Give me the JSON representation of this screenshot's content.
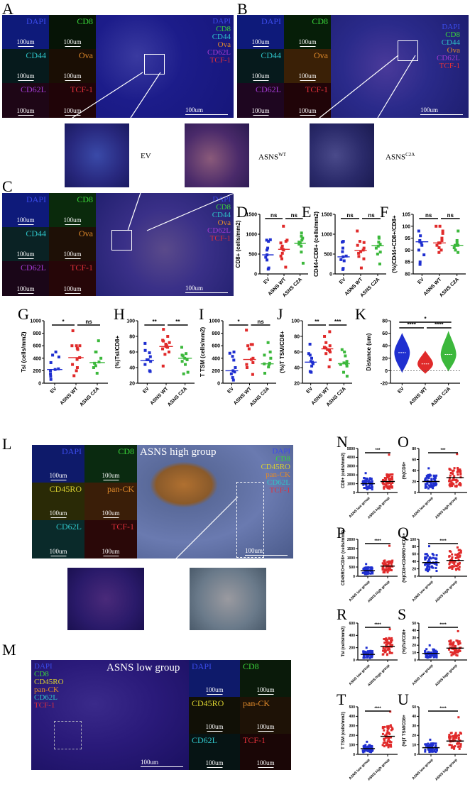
{
  "figure": {
    "panel_letters": [
      "A",
      "B",
      "C",
      "D",
      "E",
      "F",
      "G",
      "H",
      "I",
      "J",
      "K",
      "L",
      "M",
      "N",
      "O",
      "P",
      "Q",
      "R",
      "S",
      "T",
      "U"
    ]
  },
  "mouse_imaging": {
    "channels": [
      {
        "name": "DAPI",
        "color": "#2c3cd8"
      },
      {
        "name": "CD8",
        "color": "#3ad63a"
      },
      {
        "name": "CD44",
        "color": "#2fc4c8"
      },
      {
        "name": "Ova",
        "color": "#e08a2a"
      },
      {
        "name": "CD62L",
        "color": "#a13ad0"
      },
      {
        "name": "TCF-1",
        "color": "#e0303a"
      }
    ],
    "scale_bar": "100um",
    "panels": [
      {
        "id": "A",
        "group": "EV"
      },
      {
        "id": "B",
        "group": "ASNS WT"
      },
      {
        "id": "C",
        "group": "ASNS C2A"
      }
    ],
    "insets": [
      {
        "label": "EV",
        "sup": ""
      },
      {
        "label": "ASNS",
        "sup": "WT"
      },
      {
        "label": "ASNS",
        "sup": "C2A"
      }
    ]
  },
  "human_imaging": {
    "channels": [
      {
        "name": "DAPI",
        "color": "#2c3cd8"
      },
      {
        "name": "CD8",
        "color": "#3ad63a"
      },
      {
        "name": "CD45RO",
        "color": "#d8d030"
      },
      {
        "name": "pan-CK",
        "color": "#e08a2a"
      },
      {
        "name": "CD62L",
        "color": "#2fc4c8"
      },
      {
        "name": "TCF-1",
        "color": "#e0303a"
      }
    ],
    "scale_bar": "100um",
    "L_title": "ASNS high group",
    "M_title": "ASNS low group"
  },
  "chart_data": [
    {
      "panel": "D",
      "type": "scatter",
      "ylabel": "CD8+ (cells/mm2)",
      "categories": [
        "EV",
        "ASNS WT",
        "ASNS C2A"
      ],
      "ylim": [
        0,
        1500
      ],
      "yticks": [
        0,
        500,
        1000,
        1500
      ],
      "series": [
        {
          "name": "EV",
          "color": "#1f2fd0",
          "values": [
            120,
            150,
            350,
            420,
            480,
            600,
            650,
            820,
            850,
            860
          ],
          "median": 480
        },
        {
          "name": "ASNS WT",
          "color": "#e02a2a",
          "values": [
            170,
            380,
            450,
            520,
            600,
            620,
            650,
            700,
            780,
            820,
            850,
            1200
          ],
          "median": 620
        },
        {
          "name": "ASNS C2A",
          "color": "#3cb83c",
          "values": [
            270,
            550,
            700,
            750,
            780,
            800,
            850,
            900,
            950,
            1030
          ],
          "median": 770
        }
      ],
      "significance": [
        {
          "pair": "EV-WT",
          "label": "ns"
        },
        {
          "pair": "WT-C2A",
          "label": "ns"
        }
      ]
    },
    {
      "panel": "E",
      "type": "scatter",
      "ylabel": "CD44+CD8+ (cells/mm2)",
      "categories": [
        "EV",
        "ASNS WT",
        "ASNS C2A"
      ],
      "ylim": [
        0,
        1500
      ],
      "yticks": [
        0,
        500,
        1000,
        1500
      ],
      "series": [
        {
          "name": "EV",
          "color": "#1f2fd0",
          "values": [
            110,
            140,
            330,
            360,
            430,
            450,
            560,
            650,
            800,
            820
          ],
          "median": 430
        },
        {
          "name": "ASNS WT",
          "color": "#e02a2a",
          "values": [
            150,
            380,
            440,
            520,
            560,
            600,
            650,
            720,
            790,
            820,
            1080
          ],
          "median": 590
        },
        {
          "name": "ASNS C2A",
          "color": "#3cb83c",
          "values": [
            250,
            500,
            550,
            650,
            700,
            750,
            800,
            900,
            930
          ],
          "median": 710
        }
      ],
      "significance": [
        {
          "pair": "EV-WT",
          "label": "ns"
        },
        {
          "pair": "WT-C2A",
          "label": "ns"
        }
      ]
    },
    {
      "panel": "F",
      "type": "scatter",
      "ylabel": "(%)CD44+CD8+/CD8+",
      "categories": [
        "EV",
        "ASNS WT",
        "ASNS C2A"
      ],
      "ylim": [
        80,
        105
      ],
      "yticks": [
        80,
        85,
        90,
        95,
        100,
        105
      ],
      "series": [
        {
          "name": "EV",
          "color": "#1f2fd0",
          "values": [
            84,
            85,
            88,
            90,
            92,
            93,
            93.5,
            94,
            96,
            98
          ],
          "median": 93.5
        },
        {
          "name": "ASNS WT",
          "color": "#e02a2a",
          "values": [
            89,
            90,
            91,
            92,
            93,
            93,
            94,
            95,
            97,
            98,
            100,
            100
          ],
          "median": 93
        },
        {
          "name": "ASNS C2A",
          "color": "#3cb83c",
          "values": [
            89,
            90,
            91,
            92,
            92,
            92,
            93,
            94,
            98
          ],
          "median": 92
        }
      ],
      "significance": [
        {
          "pair": "EV-WT",
          "label": "ns"
        },
        {
          "pair": "WT-C2A",
          "label": "ns"
        }
      ]
    },
    {
      "panel": "G",
      "type": "scatter",
      "ylabel": "Tsl (cells/mm2)",
      "categories": [
        "EV",
        "ASNS WT",
        "ASNS C2A"
      ],
      "ylim": [
        0,
        1000
      ],
      "yticks": [
        0,
        200,
        400,
        600,
        800,
        1000
      ],
      "series": [
        {
          "name": "EV",
          "color": "#1f2fd0",
          "values": [
            60,
            110,
            150,
            200,
            220,
            230,
            330,
            420,
            450,
            500
          ],
          "median": 220
        },
        {
          "name": "ASNS WT",
          "color": "#e02a2a",
          "values": [
            120,
            200,
            250,
            300,
            380,
            410,
            540,
            560,
            600,
            600,
            600,
            840
          ],
          "median": 410
        },
        {
          "name": "ASNS C2A",
          "color": "#3cb83c",
          "values": [
            160,
            250,
            280,
            320,
            340,
            400,
            500,
            500,
            680
          ],
          "median": 330
        }
      ],
      "significance": [
        {
          "pair": "EV-WT",
          "label": "*"
        },
        {
          "pair": "WT-C2A",
          "label": "ns"
        }
      ]
    },
    {
      "panel": "H",
      "type": "scatter",
      "ylabel": "(%)Tsl/CD8+",
      "categories": [
        "EV",
        "ASNS WT",
        "ASNS C2A"
      ],
      "ylim": [
        20,
        100
      ],
      "yticks": [
        20,
        40,
        60,
        80,
        100
      ],
      "series": [
        {
          "name": "EV",
          "color": "#1f2fd0",
          "values": [
            35,
            36,
            44,
            48,
            50,
            50,
            54,
            59,
            62,
            71
          ],
          "median": 49
        },
        {
          "name": "ASNS WT",
          "color": "#e02a2a",
          "values": [
            42,
            57,
            60,
            64,
            66,
            67,
            68,
            70,
            72,
            74,
            75,
            80,
            89
          ],
          "median": 67
        },
        {
          "name": "ASNS C2A",
          "color": "#3cb83c",
          "values": [
            32,
            34,
            44,
            48,
            50,
            52,
            55,
            56,
            58,
            66
          ],
          "median": 52
        }
      ],
      "significance": [
        {
          "pair": "EV-WT",
          "label": "**"
        },
        {
          "pair": "WT-C2A",
          "label": "**"
        }
      ]
    },
    {
      "panel": "I",
      "type": "scatter",
      "ylabel": "T TSM (cells/mm2)",
      "categories": [
        "EV",
        "ASNS WT",
        "ASNS C2A"
      ],
      "ylim": [
        0,
        1000
      ],
      "yticks": [
        0,
        200,
        400,
        600,
        800,
        1000
      ],
      "series": [
        {
          "name": "EV",
          "color": "#1f2fd0",
          "values": [
            50,
            90,
            150,
            180,
            200,
            250,
            370,
            430,
            480,
            500
          ],
          "median": 200
        },
        {
          "name": "ASNS WT",
          "color": "#e02a2a",
          "values": [
            140,
            250,
            300,
            330,
            380,
            400,
            550,
            600,
            620,
            620,
            850
          ],
          "median": 380
        },
        {
          "name": "ASNS C2A",
          "color": "#3cb83c",
          "values": [
            160,
            260,
            300,
            310,
            320,
            400,
            450,
            500,
            650
          ],
          "median": 310
        }
      ],
      "significance": [
        {
          "pair": "EV-WT",
          "label": "*"
        },
        {
          "pair": "WT-C2A",
          "label": "ns"
        }
      ]
    },
    {
      "panel": "J",
      "type": "scatter",
      "ylabel": "(%)T TSM/CD8+",
      "categories": [
        "EV",
        "ASNS WT",
        "ASNS C2A"
      ],
      "ylim": [
        20,
        100
      ],
      "yticks": [
        20,
        40,
        60,
        80,
        100
      ],
      "series": [
        {
          "name": "EV",
          "color": "#1f2fd0",
          "values": [
            34,
            35,
            42,
            45,
            47,
            48,
            52,
            56,
            58,
            70
          ],
          "median": 47
        },
        {
          "name": "ASNS WT",
          "color": "#e02a2a",
          "values": [
            41,
            50,
            58,
            60,
            62,
            63,
            65,
            66,
            68,
            72,
            80,
            86
          ],
          "median": 64
        },
        {
          "name": "ASNS C2A",
          "color": "#3cb83c",
          "values": [
            29,
            34,
            42,
            44,
            45,
            46,
            48,
            55,
            60,
            63
          ],
          "median": 45
        }
      ],
      "significance": [
        {
          "pair": "EV-WT",
          "label": "**"
        },
        {
          "pair": "WT-C2A",
          "label": "***"
        }
      ]
    },
    {
      "panel": "K",
      "type": "violin",
      "ylabel": "Distance (um)",
      "categories": [
        "EV",
        "ASNS WT",
        "ASNS C2A"
      ],
      "ylim": [
        -20,
        80
      ],
      "yticks": [
        -20,
        0,
        20,
        40,
        60,
        80
      ],
      "series": [
        {
          "name": "EV",
          "color": "#1f2fd0",
          "min": -2,
          "max": 59,
          "median": 29
        },
        {
          "name": "ASNS WT",
          "color": "#e02a2a",
          "min": -4,
          "max": 31,
          "median": 11
        },
        {
          "name": "ASNS C2A",
          "color": "#3cb83c",
          "min": 0,
          "max": 62,
          "median": 26
        }
      ],
      "significance": [
        {
          "pair": "EV-WT",
          "label": "****"
        },
        {
          "pair": "WT-C2A",
          "label": "****"
        },
        {
          "pair": "EV-C2A",
          "label": "*"
        }
      ]
    },
    {
      "panel": "N",
      "type": "scatter",
      "ylabel": "CD8+ (cells/mm2)",
      "categories": [
        "ASNS low group",
        "ASNS high group"
      ],
      "ylim": [
        0,
        5000
      ],
      "yticks": [
        0,
        1000,
        2000,
        3000,
        4000,
        5000
      ],
      "series": [
        {
          "name": "ASNS low group",
          "color": "#1f2fd0",
          "median": 1000
        },
        {
          "name": "ASNS high group",
          "color": "#e02a2a",
          "median": 1250,
          "max": 4300
        }
      ],
      "significance": [
        {
          "pair": "low-high",
          "label": "***"
        }
      ]
    },
    {
      "panel": "O",
      "type": "scatter",
      "ylabel": "(%)CD8+",
      "categories": [
        "ASNS low group",
        "ASNS high group"
      ],
      "ylim": [
        0,
        80
      ],
      "yticks": [
        0,
        20,
        40,
        60,
        80
      ],
      "series": [
        {
          "name": "ASNS low group",
          "color": "#1f2fd0",
          "median": 20
        },
        {
          "name": "ASNS high group",
          "color": "#e02a2a",
          "median": 27,
          "max": 70
        }
      ],
      "significance": [
        {
          "pair": "low-high",
          "label": "***"
        }
      ]
    },
    {
      "panel": "P",
      "type": "scatter",
      "ylabel": "CD45RO+CD8+ (cells/mm2)",
      "categories": [
        "ASNS low group",
        "ASNS high group"
      ],
      "ylim": [
        0,
        2000
      ],
      "yticks": [
        0,
        500,
        1000,
        1500,
        2000
      ],
      "series": [
        {
          "name": "ASNS low group",
          "color": "#1f2fd0",
          "median": 300
        },
        {
          "name": "ASNS high group",
          "color": "#e02a2a",
          "median": 550,
          "max": 1650
        }
      ],
      "significance": [
        {
          "pair": "low-high",
          "label": "****"
        }
      ]
    },
    {
      "panel": "Q",
      "type": "scatter",
      "ylabel": "(%)CD8+CD45RO+/CD8+",
      "categories": [
        "ASNS low group",
        "ASNS high group"
      ],
      "ylim": [
        0,
        100
      ],
      "yticks": [
        0,
        20,
        40,
        60,
        80,
        100
      ],
      "series": [
        {
          "name": "ASNS low group",
          "color": "#1f2fd0",
          "median": 37
        },
        {
          "name": "ASNS high group",
          "color": "#e02a2a",
          "median": 43,
          "max": 78
        }
      ],
      "significance": [
        {
          "pair": "low-high",
          "label": "****"
        }
      ]
    },
    {
      "panel": "R",
      "type": "scatter",
      "ylabel": "Tsl (cells/mm2)",
      "categories": [
        "ASNS low group",
        "ASNS high group"
      ],
      "ylim": [
        0,
        600
      ],
      "yticks": [
        0,
        200,
        400,
        600
      ],
      "series": [
        {
          "name": "ASNS low group",
          "color": "#1f2fd0",
          "median": 90
        },
        {
          "name": "ASNS high group",
          "color": "#e02a2a",
          "median": 220,
          "max": 500
        }
      ],
      "significance": [
        {
          "pair": "low-high",
          "label": "****"
        }
      ]
    },
    {
      "panel": "S",
      "type": "scatter",
      "ylabel": "(%)Tsl/CD8+",
      "categories": [
        "ASNS low group",
        "ASNS high group"
      ],
      "ylim": [
        0,
        50
      ],
      "yticks": [
        0,
        10,
        20,
        30,
        40,
        50
      ],
      "series": [
        {
          "name": "ASNS low group",
          "color": "#1f2fd0",
          "median": 9
        },
        {
          "name": "ASNS high group",
          "color": "#e02a2a",
          "median": 16,
          "max": 39
        }
      ],
      "significance": [
        {
          "pair": "low-high",
          "label": "****"
        }
      ]
    },
    {
      "panel": "T",
      "type": "scatter",
      "ylabel": "T TSM (cells/mm2)",
      "categories": [
        "ASNS low group",
        "ASNS high group"
      ],
      "ylim": [
        0,
        500
      ],
      "yticks": [
        0,
        100,
        200,
        300,
        400,
        500
      ],
      "series": [
        {
          "name": "ASNS low group",
          "color": "#1f2fd0",
          "median": 60
        },
        {
          "name": "ASNS high group",
          "color": "#e02a2a",
          "median": 190,
          "max": 450
        }
      ],
      "significance": [
        {
          "pair": "low-high",
          "label": "****"
        }
      ]
    },
    {
      "panel": "U",
      "type": "scatter",
      "ylabel": "(%)T TSM/CD8+",
      "categories": [
        "ASNS low group",
        "ASNS high group"
      ],
      "ylim": [
        0,
        50
      ],
      "yticks": [
        0,
        10,
        20,
        30,
        40,
        50
      ],
      "series": [
        {
          "name": "ASNS low group",
          "color": "#1f2fd0",
          "median": 7
        },
        {
          "name": "ASNS high group",
          "color": "#e02a2a",
          "median": 14,
          "max": 39
        }
      ],
      "significance": [
        {
          "pair": "low-high",
          "label": "****"
        }
      ]
    }
  ]
}
